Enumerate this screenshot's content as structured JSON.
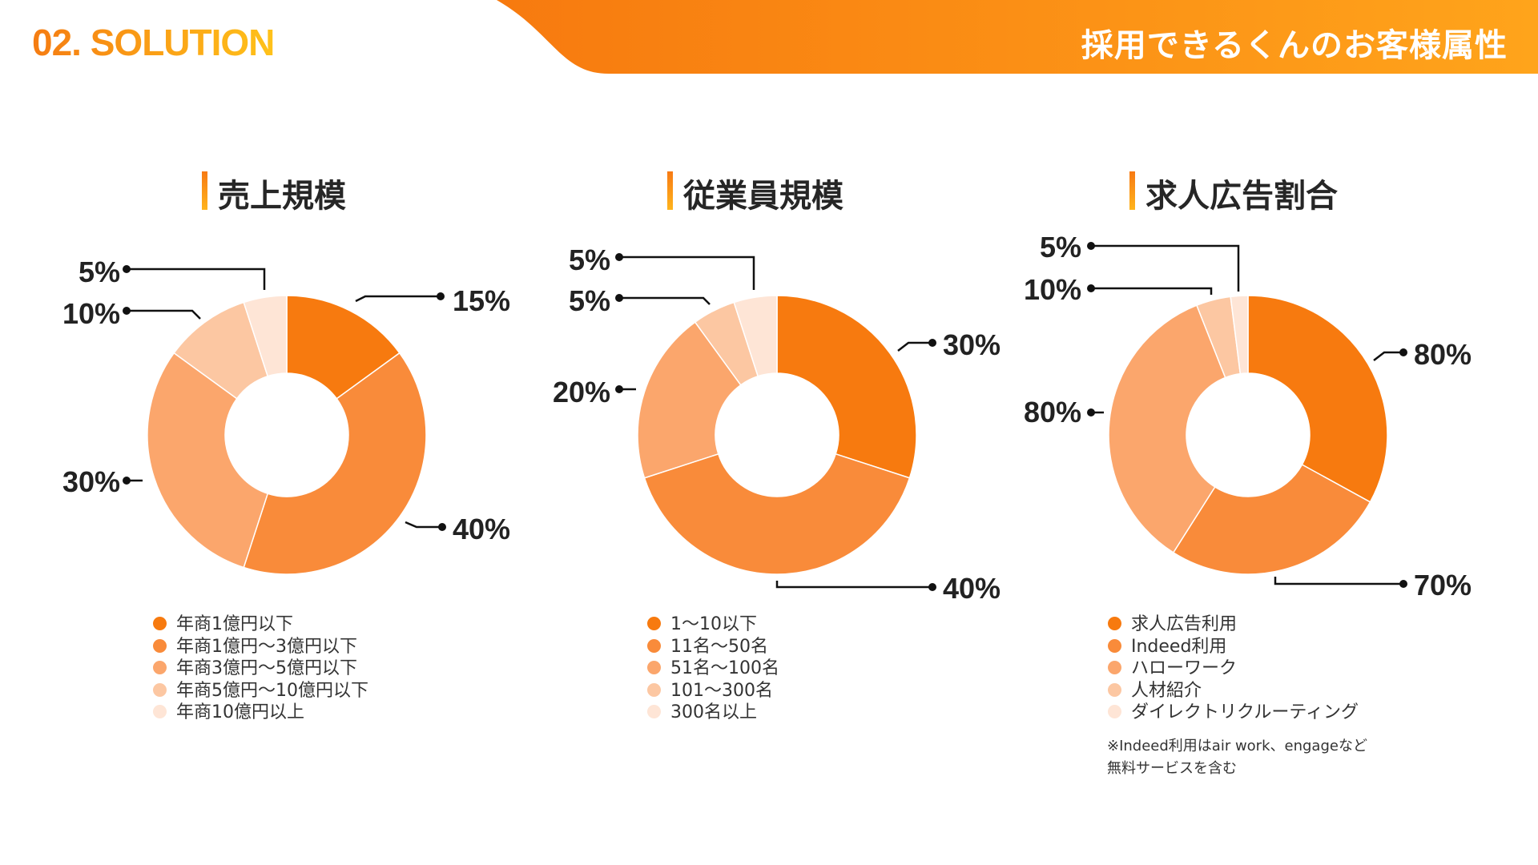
{
  "header": {
    "section_label": "02. SOLUTION",
    "title": "採用できるくんのお客様属性"
  },
  "colors": {
    "accent_start": "#f77a0f",
    "accent_end": "#ffa41b",
    "slice_1": "#f77a0f",
    "slice_2": "#f98b3a",
    "slice_3": "#fba66c",
    "slice_4": "#fcc7a2",
    "slice_5": "#fee5d6",
    "leader_line": "#111111",
    "label_text": "#222222"
  },
  "chart_data": [
    {
      "type": "pie",
      "title": "売上規模",
      "categories": [
        "年商1億円以下",
        "年商1億円〜3億円以下",
        "年商3億円〜5億円以下",
        "年商5億円〜10億円以下",
        "年商10億円以上"
      ],
      "values": [
        15,
        40,
        30,
        10,
        5
      ],
      "value_labels": [
        "15%",
        "40%",
        "30%",
        "10%",
        "5%"
      ]
    },
    {
      "type": "pie",
      "title": "従業員規模",
      "categories": [
        "1〜10以下",
        "11名〜50名",
        "51名〜100名",
        "101〜300名",
        "300名以上"
      ],
      "values": [
        30,
        40,
        20,
        5,
        5
      ],
      "value_labels": [
        "30%",
        "40%",
        "20%",
        "5%",
        "5%"
      ]
    },
    {
      "type": "pie",
      "title": "求人広告割合",
      "categories": [
        "求人広告利用",
        "Indeed利用",
        "ハローワーク",
        "人材紹介",
        "ダイレクトリクルーティング"
      ],
      "values": [
        33,
        26,
        35,
        4,
        2
      ],
      "value_labels": [
        "80%",
        "70%",
        "80%",
        "10%",
        "5%"
      ],
      "footnote": [
        "※Indeed利用はair work、engageなど",
        "無料サービスを含む"
      ]
    }
  ]
}
